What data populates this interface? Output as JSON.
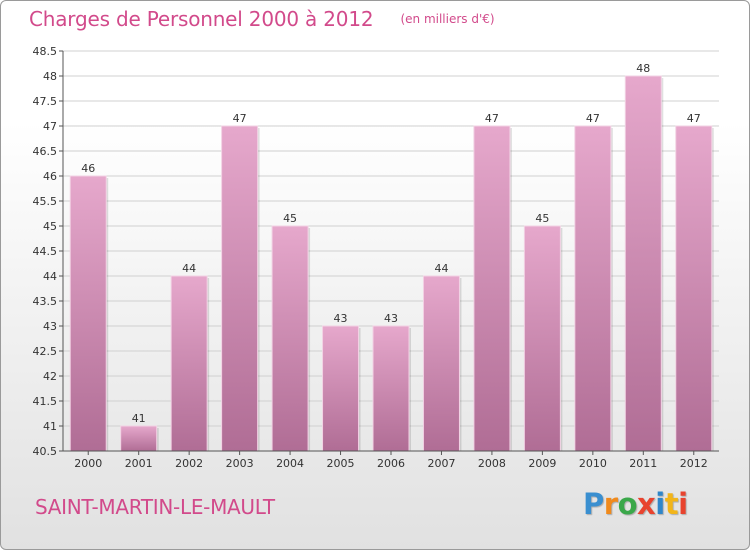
{
  "chart_data": {
    "type": "bar",
    "title": "Charges de Personnel 2000 à 2012",
    "subtitle": "(en milliers d'€)",
    "categories": [
      "2000",
      "2001",
      "2002",
      "2003",
      "2004",
      "2005",
      "2006",
      "2007",
      "2008",
      "2009",
      "2010",
      "2011",
      "2012"
    ],
    "values": [
      46,
      41,
      44,
      47,
      45,
      43,
      43,
      44,
      47,
      45,
      47,
      48,
      47
    ],
    "value_labels": [
      "46",
      "41",
      "44",
      "47",
      "45",
      "43",
      "43",
      "44",
      "47",
      "45",
      "47",
      "48",
      "47"
    ],
    "ylim": [
      40.5,
      48.5
    ],
    "yticks": [
      40.5,
      41,
      41.5,
      42,
      42.5,
      43,
      43.5,
      44,
      44.5,
      45,
      45.5,
      46,
      46.5,
      47,
      47.5,
      48,
      48.5
    ],
    "ytick_labels": [
      "40.5",
      "41",
      "41.5",
      "42",
      "42.5",
      "43",
      "43.5",
      "44",
      "44.5",
      "45",
      "45.5",
      "46",
      "46.5",
      "47",
      "47.5",
      "48",
      "48.5"
    ],
    "xlabel": "",
    "ylabel": "",
    "grid": true,
    "bar_color_top": "#e6a8cc",
    "bar_color_bottom": "#b06d95"
  },
  "footer": {
    "commune": "SAINT-MARTIN-LE-MAULT",
    "brand_letters": [
      "P",
      "r",
      "o",
      "x",
      "i",
      "t",
      "i"
    ],
    "brand_colors": [
      "#3a8fd0",
      "#f08a1c",
      "#3aa84a",
      "#e8432e",
      "#2f86c9",
      "#f2b51a",
      "#e8432e"
    ]
  },
  "colors": {
    "accent": "#d24a8b",
    "grid": "#d0d0d0",
    "axis": "#555555",
    "text": "#333333"
  }
}
